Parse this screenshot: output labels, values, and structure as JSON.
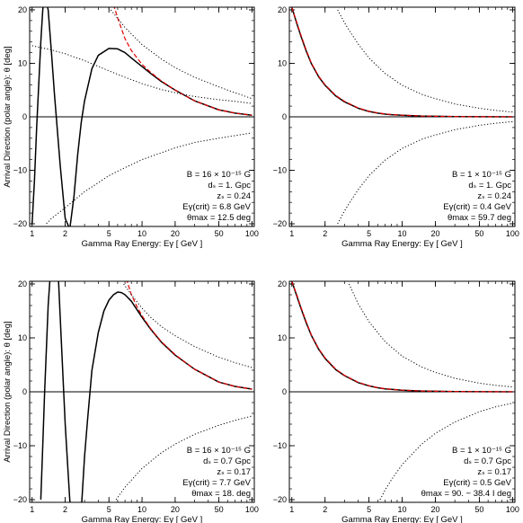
{
  "chart_data": [
    {
      "type": "line",
      "xscale": "log",
      "xlim": [
        0.95,
        105
      ],
      "ylim": [
        -20.5,
        20.5
      ],
      "xticks": [
        1,
        2,
        5,
        10,
        20,
        50,
        100
      ],
      "yticks": [
        -20,
        -10,
        0,
        10,
        20
      ],
      "xlabel": "Gamma Ray Energy:  Eγ  [ GeV ]",
      "ylabel": "Arrival Direction (polar angle): θ  [deg]",
      "annotation": [
        "B = 16 × 10⁻¹⁵ G",
        "dₛ = 1. Gpc",
        "zₛ = 0.24",
        "Eγ(crit) = 6.8 GeV",
        "θmax = 12.5 deg"
      ],
      "series": [
        {
          "style": "solid",
          "color": "#000000",
          "x": [
            1,
            1.05,
            1.1,
            1.2,
            1.25,
            1.3,
            1.4,
            1.5,
            1.6,
            1.8,
            2,
            2.2,
            2.4,
            2.6,
            2.8,
            3,
            3.5,
            4,
            5,
            6,
            7,
            8,
            10,
            12,
            15,
            20,
            30,
            50,
            70,
            100
          ],
          "y": [
            -20,
            -12,
            -2,
            14,
            20,
            23,
            20,
            12,
            4,
            -9,
            -19,
            -21,
            -15,
            -7,
            -1,
            3,
            9,
            11.5,
            12.8,
            12.7,
            12,
            11,
            9.4,
            8.1,
            6.6,
            5.0,
            3.0,
            1.3,
            0.7,
            0.3
          ]
        },
        {
          "style": "dashed",
          "color": "#e00000",
          "x": [
            5.5,
            6,
            7,
            8,
            10,
            12,
            15,
            20,
            30,
            50,
            70,
            100
          ],
          "y": [
            21,
            18.5,
            14.6,
            12.4,
            9.8,
            8.3,
            6.7,
            5.0,
            3.0,
            1.3,
            0.7,
            0.3
          ]
        },
        {
          "style": "dotted",
          "color": "#000000",
          "x": [
            5.2,
            7,
            10,
            15,
            20,
            30,
            50,
            70,
            100
          ],
          "y": [
            20,
            16.7,
            13.5,
            10.8,
            9.2,
            7.4,
            5.6,
            4.5,
            3.4
          ]
        },
        {
          "style": "dotted",
          "color": "#000000",
          "x": [
            1,
            1.5,
            2,
            3,
            5,
            7,
            10,
            15,
            20,
            30,
            50,
            70,
            100
          ],
          "y": [
            13.3,
            12.5,
            11.8,
            10.5,
            8.6,
            7.4,
            6.2,
            5.1,
            4.5,
            3.8,
            3.2,
            2.9,
            2.5
          ]
        },
        {
          "style": "dotted",
          "color": "#000000",
          "x": [
            1.35,
            1.5,
            2,
            3,
            5,
            7,
            10,
            20,
            30,
            50,
            100
          ],
          "y": [
            -20,
            -19,
            -17,
            -14,
            -11,
            -9.5,
            -8,
            -5.8,
            -4.8,
            -4,
            -3
          ]
        }
      ]
    },
    {
      "type": "line",
      "xscale": "log",
      "xlim": [
        0.95,
        105
      ],
      "ylim": [
        -20.5,
        20.5
      ],
      "xticks": [
        1,
        2,
        5,
        10,
        20,
        50,
        100
      ],
      "yticks": [
        -20,
        -10,
        0,
        10,
        20
      ],
      "xlabel": "Gamma Ray Energy:  Eγ  [ GeV ]",
      "ylabel": "",
      "annotation": [
        "B = 1 × 10⁻¹⁵ G",
        "dₛ = 1. Gpc",
        "zₛ = 0.24",
        "Eγ(crit) = 0.4 GeV",
        "θmax = 59.7 deg"
      ],
      "series": [
        {
          "style": "solid",
          "color": "#000000",
          "x": [
            1,
            1.1,
            1.2,
            1.35,
            1.5,
            1.75,
            2,
            2.5,
            3,
            4,
            5,
            6,
            7,
            8,
            10,
            15,
            20,
            30,
            50,
            100
          ],
          "y": [
            20.5,
            17.7,
            15.3,
            12.3,
            10,
            7.5,
            5.9,
            3.9,
            2.8,
            1.6,
            1.0,
            0.7,
            0.5,
            0.4,
            0.3,
            0.15,
            0.1,
            0.05,
            0.02,
            0.01
          ]
        },
        {
          "style": "dashed",
          "color": "#e00000",
          "x": [
            1,
            1.1,
            1.2,
            1.35,
            1.5,
            1.75,
            2,
            2.5,
            3,
            4,
            5,
            6,
            7,
            8,
            10,
            15,
            20,
            30,
            50,
            100
          ],
          "y": [
            20.5,
            17.9,
            15.5,
            12.5,
            10.1,
            7.6,
            6.0,
            4.0,
            2.9,
            1.65,
            1.05,
            0.75,
            0.55,
            0.42,
            0.3,
            0.15,
            0.1,
            0.05,
            0.02,
            0.01
          ]
        },
        {
          "style": "dotted",
          "color": "#000000",
          "x": [
            2.6,
            3,
            3.5,
            4,
            5,
            7,
            10,
            15,
            20,
            30,
            50,
            70,
            100
          ],
          "y": [
            20,
            17.6,
            15.4,
            13.6,
            11,
            8.1,
            5.9,
            4.2,
            3.4,
            2.4,
            1.6,
            1.2,
            0.9
          ]
        },
        {
          "style": "dotted",
          "color": "#000000",
          "x": [
            2.6,
            3,
            3.5,
            4,
            5,
            7,
            10,
            15,
            20,
            30,
            50,
            70,
            100
          ],
          "y": [
            -20,
            -17.6,
            -15.4,
            -13.6,
            -11,
            -8.1,
            -5.9,
            -4.2,
            -3.4,
            -2.4,
            -1.6,
            -1.2,
            -0.9
          ]
        }
      ]
    },
    {
      "type": "line",
      "xscale": "log",
      "xlim": [
        0.95,
        105
      ],
      "ylim": [
        -20.5,
        20.5
      ],
      "xticks": [
        1,
        2,
        5,
        10,
        20,
        50,
        100
      ],
      "yticks": [
        -20,
        -10,
        0,
        10,
        20
      ],
      "xlabel": "Gamma Ray Energy:  Eγ  [ GeV ]",
      "ylabel": "Arrival Direction (polar angle): θ  [deg]",
      "annotation": [
        "B = 16 × 10⁻¹⁵ G",
        "dₛ = 0.7 Gpc",
        "zₛ = 0.17",
        "Eγ(crit) = 7.7 GeV",
        "θmax = 18. deg"
      ],
      "series": [
        {
          "style": "solid",
          "color": "#000000",
          "x": [
            1.2,
            1.25,
            1.3,
            1.4,
            1.5,
            1.6,
            1.7,
            1.8,
            2,
            2.2,
            2.4,
            2.6,
            2.8,
            3,
            3.2,
            3.5,
            4,
            4.5,
            5,
            5.5,
            6,
            6.5,
            7,
            8,
            10,
            12,
            15,
            20,
            30,
            50,
            70,
            100
          ],
          "y": [
            -20,
            -10,
            0,
            16,
            25,
            30,
            25,
            14,
            -6,
            -20,
            -28,
            -28,
            -22,
            -12,
            -5,
            4,
            11,
            15,
            17,
            18,
            18.5,
            18.4,
            18,
            16.8,
            13.8,
            11.6,
            9.2,
            6.8,
            4.2,
            1.8,
            1.0,
            0.5
          ]
        },
        {
          "style": "dashed",
          "color": "#e00000",
          "x": [
            7.2,
            8,
            9,
            10,
            12,
            15,
            20,
            30,
            50,
            70,
            100
          ],
          "y": [
            21,
            18,
            15.8,
            14.1,
            11.7,
            9.3,
            6.9,
            4.2,
            1.8,
            1.0,
            0.5
          ]
        },
        {
          "style": "dotted",
          "color": "#000000",
          "x": [
            6.8,
            8,
            10,
            12,
            15,
            20,
            30,
            50,
            70,
            100
          ],
          "y": [
            20,
            18,
            15.5,
            13.8,
            12.1,
            10.4,
            8.4,
            6.4,
            5.4,
            4.5
          ]
        },
        {
          "style": "dotted",
          "color": "#000000",
          "x": [
            5.8,
            7,
            10,
            15,
            20,
            30,
            50,
            70,
            100
          ],
          "y": [
            -20,
            -17.7,
            -14.2,
            -11.3,
            -9.7,
            -7.9,
            -6.2,
            -5.3,
            -4.5
          ]
        }
      ]
    },
    {
      "type": "line",
      "xscale": "log",
      "xlim": [
        0.95,
        105
      ],
      "ylim": [
        -20.5,
        20.5
      ],
      "xticks": [
        1,
        2,
        5,
        10,
        20,
        50,
        100
      ],
      "yticks": [
        -20,
        -10,
        0,
        10,
        20
      ],
      "xlabel": "Gamma Ray Energy:  Eγ  [ GeV ]",
      "ylabel": "",
      "annotation": [
        "B = 1 × 10⁻¹⁵ G",
        "dₛ = 0.7 Gpc",
        "zₛ = 0.17",
        "Eγ(crit) = 0.5 GeV",
        "θmax = 90. − 38.4 I deg"
      ],
      "series": [
        {
          "style": "solid",
          "color": "#000000",
          "x": [
            1,
            1.1,
            1.2,
            1.35,
            1.5,
            1.75,
            2,
            2.5,
            3,
            4,
            5,
            6,
            7,
            8,
            10,
            15,
            20,
            30,
            50,
            100
          ],
          "y": [
            20.5,
            18,
            15.7,
            12.8,
            10.5,
            7.9,
            6.2,
            4.1,
            3.0,
            1.7,
            1.1,
            0.75,
            0.55,
            0.45,
            0.3,
            0.15,
            0.1,
            0.05,
            0.02,
            0.01
          ]
        },
        {
          "style": "dashed",
          "color": "#e00000",
          "x": [
            1,
            1.1,
            1.2,
            1.35,
            1.5,
            1.75,
            2,
            2.5,
            3,
            4,
            5,
            6,
            7,
            8,
            10,
            15,
            20,
            30,
            50,
            100
          ],
          "y": [
            20.5,
            18.2,
            15.9,
            13.0,
            10.6,
            8.0,
            6.3,
            4.2,
            3.05,
            1.75,
            1.12,
            0.78,
            0.57,
            0.46,
            0.3,
            0.15,
            0.1,
            0.05,
            0.02,
            0.01
          ]
        },
        {
          "style": "dotted",
          "color": "#000000",
          "x": [
            3.3,
            4,
            5,
            7,
            10,
            15,
            20,
            30,
            50,
            70,
            100
          ],
          "y": [
            20,
            16.3,
            13,
            9.3,
            6.6,
            4.6,
            3.6,
            2.5,
            1.6,
            1.2,
            0.9
          ]
        },
        {
          "style": "dotted",
          "color": "#000000",
          "x": [
            6.3,
            7,
            8,
            10,
            15,
            20,
            30,
            50,
            70,
            100
          ],
          "y": [
            -20,
            -18.2,
            -16.3,
            -13.5,
            -9.7,
            -7.7,
            -5.6,
            -3.7,
            -2.8,
            -2.1
          ]
        }
      ]
    }
  ]
}
